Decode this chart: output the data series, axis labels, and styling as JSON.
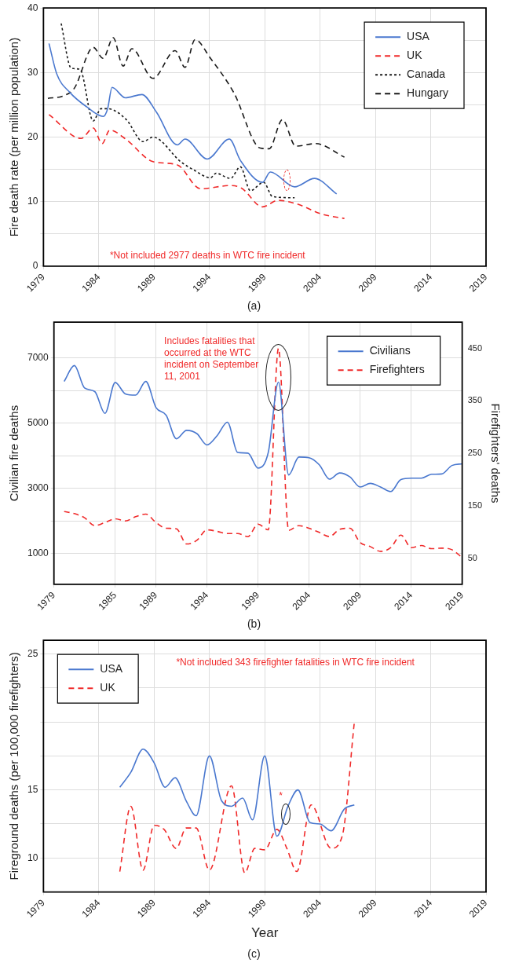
{
  "chart_data": [
    {
      "type": "line",
      "ylabel": "Fire death rate (per million population)",
      "xlim": [
        1979,
        2019
      ],
      "xticks": [
        1979,
        1984,
        1989,
        1994,
        1999,
        2004,
        2009,
        2014,
        2019
      ],
      "ylim": [
        0,
        40
      ],
      "yticks": [
        0,
        {
          "value": 5,
          "label": null
        },
        10,
        {
          "value": 15,
          "label": null
        },
        20,
        {
          "value": 25,
          "label": null
        },
        30,
        {
          "value": 35,
          "label": null
        },
        40
      ],
      "grid": true,
      "legend": "top right",
      "annotations": [
        "*Not included 2977 deaths in WTC fire incident",
        "(a)"
      ],
      "series": [
        {
          "name": "USA",
          "color": "#4a78cf",
          "line_style": "solid",
          "x": [
            1979.5,
            1980.2,
            1981.4,
            1982.9,
            1984.4,
            1984.8,
            1985.2,
            1986.4,
            1987.9,
            1989.2,
            1991.1,
            1991.8,
            1993.8,
            1995.8,
            1996.8,
            1998.8,
            1999.5,
            2001.7,
            2003.5,
            2005.5
          ],
          "values": [
            34.5,
            29.8,
            26.9,
            24.7,
            23.2,
            24.4,
            27.7,
            26.1,
            26.6,
            23.9,
            18.8,
            19.7,
            16.6,
            19.7,
            16.4,
            13,
            14.6,
            12.3,
            13.6,
            11.2
          ]
        },
        {
          "name": "UK",
          "color": "#f02a2a",
          "line_style": "dashed",
          "x": [
            1979.5,
            1982.4,
            1983.5,
            1984.3,
            1985,
            1986.5,
            1988.9,
            1991.1,
            1993.2,
            1995.9,
            1996.9,
            1998.8,
            2000.2,
            2002,
            2004.1,
            2006.2
          ],
          "values": [
            23.5,
            19.8,
            21.4,
            19,
            21.1,
            19.6,
            16.2,
            15.7,
            12,
            12.5,
            12.1,
            9.2,
            10.2,
            9.6,
            8.1,
            7.4
          ]
        },
        {
          "name": "Canada",
          "color": "#1a1a1a",
          "line_style": "dotted",
          "x": [
            1980.6,
            1981.5,
            1982.3,
            1983.5,
            1984.2,
            1984.8,
            1986.5,
            1988,
            1988.9,
            1991.4,
            1992.6,
            1994.1,
            1994.6,
            1995.9,
            1996.8,
            1997.7,
            1998.9,
            1999.7,
            2001.7
          ],
          "values": [
            37.6,
            30.7,
            30.5,
            22.5,
            24.4,
            24.4,
            22.7,
            19.3,
            20,
            16.2,
            14.9,
            13.7,
            14.4,
            13.6,
            15.4,
            11.7,
            13,
            10.8,
            10.6
          ]
        },
        {
          "name": "Hungary",
          "color": "#1a1a1a",
          "line_style": "dashed",
          "x": [
            1979.4,
            1980.8,
            1981.8,
            1983.5,
            1984.4,
            1985.3,
            1986.2,
            1987,
            1988.9,
            1990.9,
            1991.8,
            1992.7,
            1994.1,
            1996.2,
            1998.6,
            1999.4,
            2000.6,
            2001.8,
            2003.6,
            2006.2
          ],
          "values": [
            26,
            26.4,
            27.6,
            33.9,
            32.2,
            35.4,
            31,
            33.7,
            29.1,
            33.4,
            30.8,
            35.1,
            32.2,
            26.9,
            18.3,
            18.2,
            22.7,
            18.6,
            19,
            16.9
          ]
        }
      ]
    },
    {
      "type": "line",
      "ylabel": "Civilian fire deaths",
      "y2label": "Firefighters' deaths",
      "xlim": [
        1979,
        2019
      ],
      "xticks": [
        1979,
        1985,
        1989,
        1994,
        1999,
        2004,
        2009,
        2014,
        2019
      ],
      "ylim": [
        50,
        8100
      ],
      "yticks": [
        1000,
        {
          "value": 2000,
          "label": null
        },
        3000,
        {
          "value": 4000,
          "label": null
        },
        5000,
        {
          "value": 6000,
          "label": null
        },
        7000
      ],
      "y2lim": [
        0,
        500
      ],
      "y2ticks": [
        50,
        150,
        250,
        350,
        450
      ],
      "grid": true,
      "legend": "top right",
      "annotations": [
        "Includes fatalities that occurred at the WTC incident on September 11, 2001",
        "(b)"
      ],
      "x": [
        1980,
        1981,
        1982,
        1983,
        1984,
        1985,
        1986,
        1987,
        1988,
        1989,
        1990,
        1991,
        1992,
        1993,
        1994,
        1995,
        1996,
        1997,
        1998,
        1999,
        2000,
        2001,
        2002,
        2003,
        2004,
        2005,
        2006,
        2007,
        2008,
        2009,
        2010,
        2011,
        2012,
        2013,
        2014,
        2015,
        2016,
        2017,
        2018,
        2019
      ],
      "series": [
        {
          "name": "Civilians",
          "color": "#4a78cf",
          "line_style": "solid",
          "values": [
            6280,
            6770,
            6080,
            5970,
            5300,
            6250,
            5900,
            5860,
            6280,
            5480,
            5240,
            4520,
            4780,
            4680,
            4330,
            4620,
            5030,
            4100,
            4080,
            3620,
            4100,
            6260,
            3410,
            3960,
            3940,
            3720,
            3280,
            3470,
            3350,
            3040,
            3150,
            3040,
            2900,
            3270,
            3310,
            3310,
            3430,
            3440,
            3700,
            3750
          ]
        },
        {
          "name": "Firefighters",
          "color": "#f02a2a",
          "line_style": "dashed",
          "axis": "y2",
          "values": [
            139,
            135,
            127,
            112,
            118,
            125,
            121,
            129,
            134,
            118,
            107,
            106,
            77,
            84,
            104,
            101,
            97,
            97,
            91,
            115,
            104,
            450,
            103,
            112,
            107,
            99,
            91,
            105,
            107,
            80,
            72,
            63,
            70,
            94,
            70,
            74,
            68,
            69,
            66,
            51
          ]
        }
      ]
    },
    {
      "type": "line",
      "xlabel": "Year",
      "ylabel": "Fireground deaths (per 100,000 firefighters)",
      "xlim": [
        1979,
        2019
      ],
      "xticks": [
        1979,
        1984,
        1989,
        1994,
        1999,
        2004,
        2009,
        2014,
        2019
      ],
      "ylim": [
        7.5,
        26
      ],
      "yticks": [
        10,
        {
          "value": 12.5,
          "label": null
        },
        15,
        {
          "value": 17.5,
          "label": null
        },
        {
          "value": 20,
          "label": null
        },
        {
          "value": 22.5,
          "label": null
        },
        25
      ],
      "grid": true,
      "legend": "top left",
      "annotations": [
        "*Not included 343 firefighter fatalities in WTC fire incident",
        "*",
        "(c)"
      ],
      "series": [
        {
          "name": "USA",
          "color": "#4a78cf",
          "line_style": "solid",
          "x": [
            1985.9,
            1986.9,
            1988,
            1989,
            1990,
            1990.9,
            1991.9,
            1992.8,
            1994,
            1995.1,
            1996,
            1997,
            1997.9,
            1999,
            2000.1,
            2001.1,
            2002,
            2003.1,
            2004,
            2005,
            2006.2,
            2007.1
          ],
          "values": [
            15.2,
            16.3,
            18,
            17,
            15.2,
            15.9,
            14.2,
            13.1,
            17.5,
            14.2,
            13.8,
            14.4,
            12.8,
            17.5,
            11.6,
            13.8,
            15,
            12.6,
            12.5,
            12,
            13.6,
            13.9
          ]
        },
        {
          "name": "UK",
          "color": "#f02a2a",
          "line_style": "dashed",
          "x": [
            1985.9,
            1986.9,
            1988,
            1989,
            1989.9,
            1991,
            1991.9,
            1992.8,
            1994,
            1996,
            1997.2,
            1998.1,
            1999,
            2000.1,
            2001,
            2001.9,
            2003.2,
            2005,
            2006,
            2007.1
          ],
          "values": [
            9,
            13.8,
            9.1,
            12.4,
            12.1,
            10.7,
            12.2,
            12.2,
            9.1,
            15.3,
            8.9,
            10.7,
            10.6,
            12.1,
            10.7,
            9,
            13.9,
            10.7,
            11.6,
            20
          ]
        }
      ]
    }
  ]
}
